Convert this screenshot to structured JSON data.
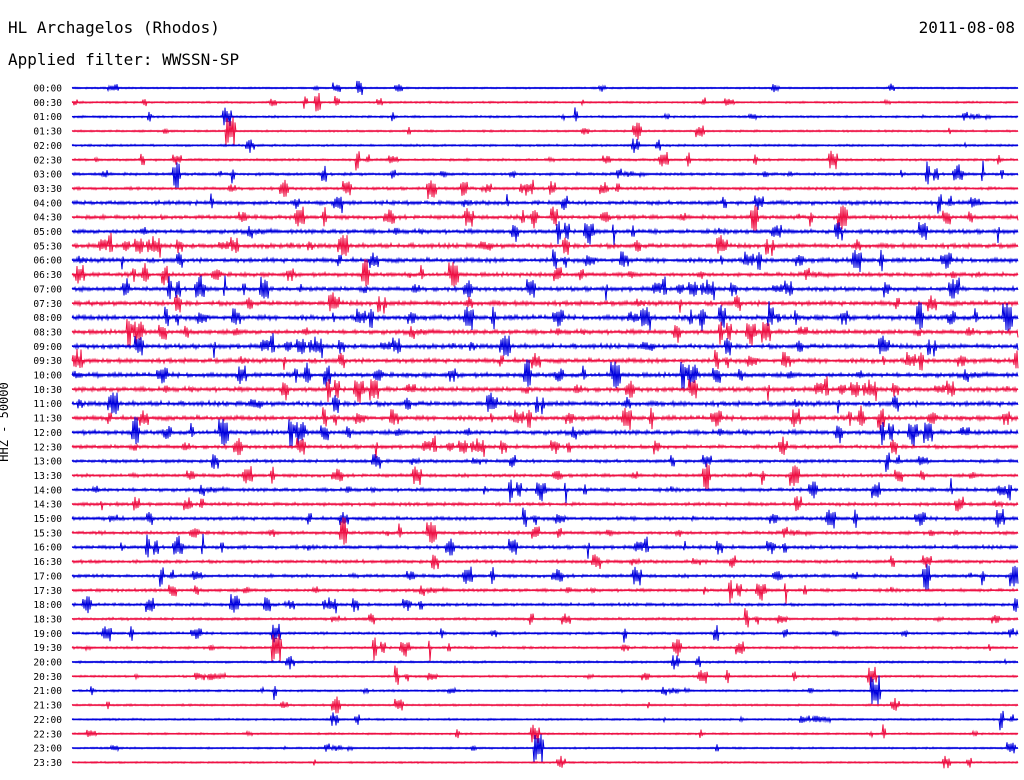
{
  "header": {
    "station": "HL Archagelos (Rhodos)",
    "date": "2011-08-08",
    "filter": "Applied filter: WWSSN-SP"
  },
  "chart_data": {
    "type": "line",
    "title": "HL Archagelos (Rhodos)",
    "subtitle": "Applied filter: WWSSN-SP",
    "date": "2011-08-08",
    "ylabel": "HHZ - 50000",
    "colors": [
      "#0000dd",
      "#ee1144"
    ],
    "grid": false,
    "rows": [
      {
        "label": "00:00",
        "color": "#0000dd",
        "activity": 0.12
      },
      {
        "label": "00:30",
        "color": "#ee1144",
        "activity": 0.18
      },
      {
        "label": "01:00",
        "color": "#0000dd",
        "activity": 0.22
      },
      {
        "label": "01:30",
        "color": "#ee1144",
        "activity": 0.2
      },
      {
        "label": "02:00",
        "color": "#0000dd",
        "activity": 0.25
      },
      {
        "label": "02:30",
        "color": "#ee1144",
        "activity": 0.28
      },
      {
        "label": "03:00",
        "color": "#0000dd",
        "activity": 0.38
      },
      {
        "label": "03:30",
        "color": "#ee1144",
        "activity": 0.42
      },
      {
        "label": "04:00",
        "color": "#0000dd",
        "activity": 0.7
      },
      {
        "label": "04:30",
        "color": "#ee1144",
        "activity": 0.65
      },
      {
        "label": "05:00",
        "color": "#0000dd",
        "activity": 0.72
      },
      {
        "label": "05:30",
        "color": "#ee1144",
        "activity": 0.82
      },
      {
        "label": "06:00",
        "color": "#0000dd",
        "activity": 0.8
      },
      {
        "label": "06:30",
        "color": "#ee1144",
        "activity": 0.68
      },
      {
        "label": "07:00",
        "color": "#0000dd",
        "activity": 0.75
      },
      {
        "label": "07:30",
        "color": "#ee1144",
        "activity": 0.85
      },
      {
        "label": "08:00",
        "color": "#0000dd",
        "activity": 0.88
      },
      {
        "label": "08:30",
        "color": "#ee1144",
        "activity": 0.78
      },
      {
        "label": "09:00",
        "color": "#0000dd",
        "activity": 0.82
      },
      {
        "label": "09:30",
        "color": "#ee1144",
        "activity": 0.8
      },
      {
        "label": "10:00",
        "color": "#0000dd",
        "activity": 0.78
      },
      {
        "label": "10:30",
        "color": "#ee1144",
        "activity": 0.82
      },
      {
        "label": "11:00",
        "color": "#0000dd",
        "activity": 0.88
      },
      {
        "label": "11:30",
        "color": "#ee1144",
        "activity": 0.8
      },
      {
        "label": "12:00",
        "color": "#0000dd",
        "activity": 0.78
      },
      {
        "label": "12:30",
        "color": "#ee1144",
        "activity": 0.6
      },
      {
        "label": "13:00",
        "color": "#0000dd",
        "activity": 0.5
      },
      {
        "label": "13:30",
        "color": "#ee1144",
        "activity": 0.48
      },
      {
        "label": "14:00",
        "color": "#0000dd",
        "activity": 0.55
      },
      {
        "label": "14:30",
        "color": "#ee1144",
        "activity": 0.52
      },
      {
        "label": "15:00",
        "color": "#0000dd",
        "activity": 0.58
      },
      {
        "label": "15:30",
        "color": "#ee1144",
        "activity": 0.5
      },
      {
        "label": "16:00",
        "color": "#0000dd",
        "activity": 0.55
      },
      {
        "label": "16:30",
        "color": "#ee1144",
        "activity": 0.5
      },
      {
        "label": "17:00",
        "color": "#0000dd",
        "activity": 0.48
      },
      {
        "label": "17:30",
        "color": "#ee1144",
        "activity": 0.45
      },
      {
        "label": "18:00",
        "color": "#0000dd",
        "activity": 0.42
      },
      {
        "label": "18:30",
        "color": "#ee1144",
        "activity": 0.36
      },
      {
        "label": "19:00",
        "color": "#0000dd",
        "activity": 0.32
      },
      {
        "label": "19:30",
        "color": "#ee1144",
        "activity": 0.3
      },
      {
        "label": "20:00",
        "color": "#0000dd",
        "activity": 0.24
      },
      {
        "label": "20:30",
        "color": "#ee1144",
        "activity": 0.22
      },
      {
        "label": "21:00",
        "color": "#0000dd",
        "activity": 0.22
      },
      {
        "label": "21:30",
        "color": "#ee1144",
        "activity": 0.2
      },
      {
        "label": "22:00",
        "color": "#0000dd",
        "activity": 0.2
      },
      {
        "label": "22:30",
        "color": "#ee1144",
        "activity": 0.16
      },
      {
        "label": "23:00",
        "color": "#0000dd",
        "activity": 0.16
      },
      {
        "label": "23:30",
        "color": "#ee1144",
        "activity": 0.14
      }
    ]
  }
}
